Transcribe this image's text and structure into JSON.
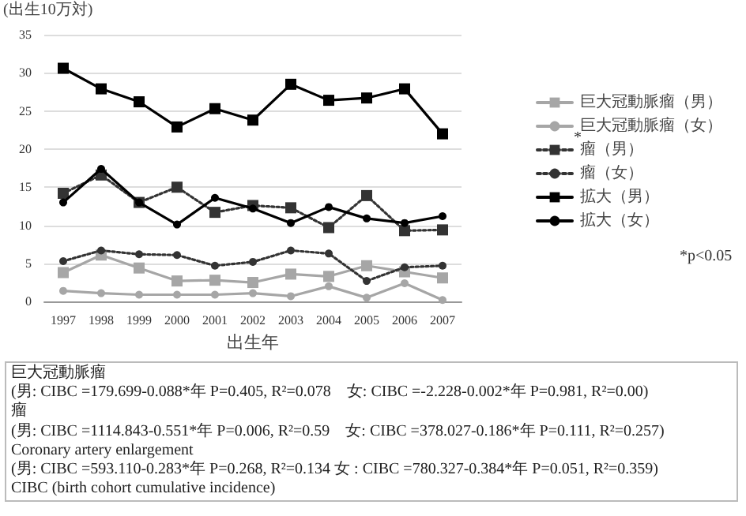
{
  "chart_data": {
    "type": "line",
    "ylabel": "(出生10万対)",
    "xlabel": "出生年",
    "categories": [
      "1997",
      "1998",
      "1999",
      "2000",
      "2001",
      "2002",
      "2003",
      "2004",
      "2005",
      "2006",
      "2007"
    ],
    "series": [
      {
        "name": "巨大冠動脈瘤（男）",
        "color": "#a6a6a6",
        "marker": "square",
        "line_style": "solid",
        "values": [
          3.8,
          6.1,
          4.4,
          2.7,
          2.8,
          2.5,
          3.6,
          3.3,
          4.7,
          3.9,
          3.1
        ]
      },
      {
        "name": "巨大冠動脈瘤（女）",
        "color": "#a6a6a6",
        "marker": "circle",
        "line_style": "solid",
        "values": [
          1.4,
          1.1,
          0.9,
          0.9,
          0.9,
          1.1,
          0.7,
          2.0,
          0.5,
          2.4,
          0.2
        ]
      },
      {
        "name": "瘤（男）",
        "color": "#333333",
        "marker": "square",
        "line_style": "dotted",
        "values": [
          14.2,
          16.6,
          13.0,
          15.0,
          11.7,
          12.6,
          12.3,
          9.7,
          13.9,
          9.3,
          9.4
        ]
      },
      {
        "name": "瘤（女）",
        "color": "#333333",
        "marker": "circle",
        "line_style": "dotted",
        "values": [
          5.3,
          6.7,
          6.2,
          6.1,
          4.7,
          5.2,
          6.7,
          6.3,
          2.7,
          4.5,
          4.7
        ]
      },
      {
        "name": "拡大（男）",
        "color": "#000000",
        "marker": "square",
        "line_style": "solid",
        "values": [
          30.6,
          27.9,
          26.2,
          22.9,
          25.3,
          23.8,
          28.5,
          26.4,
          26.7,
          27.9,
          22.0
        ]
      },
      {
        "name": "拡大（女）",
        "color": "#000000",
        "marker": "circle",
        "line_style": "solid",
        "values": [
          13.0,
          17.4,
          13.0,
          10.1,
          13.6,
          12.2,
          10.3,
          12.4,
          10.9,
          10.3,
          11.2
        ]
      }
    ],
    "ylim": [
      0,
      35
    ],
    "yticks": [
      0,
      5,
      10,
      15,
      20,
      25,
      30,
      35
    ],
    "grid": "y",
    "legend": "right",
    "annotations": [
      "*",
      "*p<0.05",
      "巨大冠動脈瘤",
      "(男: CIBC =179.699-0.088*年 P=0.405, R²=0.078　女: CIBC =-2.228-0.002*年 P=0.981, R²=0.00)",
      "瘤",
      "(男: CIBC =1114.843-0.551*年 P=0.006, R²=0.59　女: CIBC =378.027-0.186*年 P=0.111, R²=0.257)",
      "Coronary artery enlargement",
      "(男: CIBC =593.110-0.283*年 P=0.268, R²=0.134 女 : CIBC =780.327-0.384*年 P=0.051, R²=0.359)",
      "CIBC (birth cohort cumulative incidence)"
    ]
  }
}
